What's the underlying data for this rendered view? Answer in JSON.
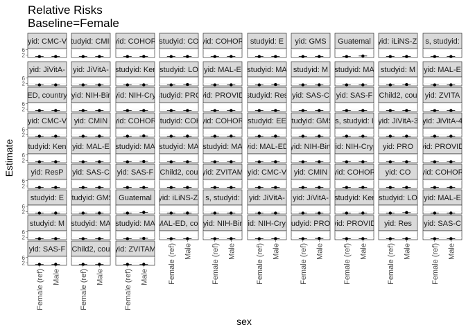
{
  "chart_data": {
    "type": "scatter",
    "title": "Relative Risks",
    "subtitle": "Baseline=Female",
    "xlabel": "sex",
    "ylabel": "Estimate",
    "categories": [
      "Female (ref)",
      "Male"
    ],
    "y_ticks": [
      "2",
      "6"
    ],
    "grid": true,
    "facet_layout": {
      "cols": 10,
      "rows": 9
    },
    "x_axis_label_columns": [
      0,
      1,
      2,
      3,
      4,
      5,
      6,
      7,
      8,
      9
    ],
    "panels": [
      {
        "strip": "yid: CMC-V",
        "values": [
          1,
          1.02
        ],
        "ci": [
          0.05,
          0.08
        ]
      },
      {
        "strip": "studyid: CMIN",
        "values": [
          1,
          1.05
        ],
        "ci": [
          0.05,
          0.1
        ]
      },
      {
        "strip": "yid: COHOR",
        "values": [
          1,
          1.1
        ],
        "ci": [
          0.05,
          0.2
        ]
      },
      {
        "strip": "studyid: CO",
        "values": [
          1,
          1.05
        ],
        "ci": [
          0.05,
          0.1
        ]
      },
      {
        "strip": "yid: COHOR",
        "values": [
          1,
          1.08
        ],
        "ci": [
          0.05,
          0.12
        ]
      },
      {
        "strip": "studyid: E",
        "values": [
          1,
          1.0
        ],
        "ci": [
          0.05,
          0.1
        ]
      },
      {
        "strip": "yid: GMS",
        "values": [
          1,
          1.05
        ],
        "ci": [
          0.05,
          0.1
        ]
      },
      {
        "strip": "Guatemal",
        "values": [
          1,
          1.4
        ],
        "ci": [
          0.05,
          0.6
        ]
      },
      {
        "strip": "yid: iLiNS-Zi",
        "values": [
          1,
          1.05
        ],
        "ci": [
          0.05,
          0.1
        ]
      },
      {
        "strip": "s, studyid:",
        "values": [
          1,
          1.02
        ],
        "ci": [
          0.05,
          0.08
        ]
      },
      {
        "strip": "yid: JiVitA-",
        "values": [
          1,
          1.02
        ],
        "ci": [
          0.05,
          0.05
        ]
      },
      {
        "strip": "yid: JiVitA-",
        "values": [
          1,
          1.02
        ],
        "ci": [
          0.05,
          0.05
        ]
      },
      {
        "strip": "studyid: Ker",
        "values": [
          1,
          1.05
        ],
        "ci": [
          0.05,
          0.1
        ]
      },
      {
        "strip": "studyid: LO",
        "values": [
          1,
          1.3
        ],
        "ci": [
          0.05,
          0.5
        ]
      },
      {
        "strip": "yid: MAL-E",
        "values": [
          1,
          1.05
        ],
        "ci": [
          0.05,
          0.1
        ]
      },
      {
        "strip": "studyid: MA",
        "values": [
          1,
          1.3
        ],
        "ci": [
          0.05,
          0.4
        ]
      },
      {
        "strip": "studyid: M",
        "values": [
          1,
          1.05
        ],
        "ci": [
          0.05,
          0.1
        ]
      },
      {
        "strip": "studyid: MA",
        "values": [
          1,
          1.05
        ],
        "ci": [
          0.05,
          0.1
        ]
      },
      {
        "strip": "studyid: M",
        "values": [
          1,
          1.3
        ],
        "ci": [
          0.05,
          0.4
        ]
      },
      {
        "strip": "yid: MAL-E",
        "values": [
          1,
          1.05
        ],
        "ci": [
          0.05,
          0.1
        ]
      },
      {
        "strip": "ED, country",
        "values": [
          1,
          1.05
        ],
        "ci": [
          0.05,
          0.1
        ]
      },
      {
        "strip": "yid: NIH-Bir",
        "values": [
          1,
          1.05
        ],
        "ci": [
          0.05,
          0.1
        ]
      },
      {
        "strip": "yid: NIH-Cry",
        "values": [
          1,
          1.05
        ],
        "ci": [
          0.05,
          0.1
        ]
      },
      {
        "strip": "studyid: PRO",
        "values": [
          1,
          1.05
        ],
        "ci": [
          0.05,
          0.1
        ]
      },
      {
        "strip": "yid: PROVID",
        "values": [
          1,
          1.05
        ],
        "ci": [
          0.05,
          0.1
        ]
      },
      {
        "strip": "studyid: Res",
        "values": [
          1,
          1.05
        ],
        "ci": [
          0.05,
          0.1
        ]
      },
      {
        "strip": "yid: SAS-C",
        "values": [
          1,
          1.05
        ],
        "ci": [
          0.05,
          0.1
        ]
      },
      {
        "strip": "yid: SAS-F",
        "values": [
          1,
          1.05
        ],
        "ci": [
          0.05,
          0.1
        ]
      },
      {
        "strip": "Child2, cou",
        "values": [
          1,
          1.05
        ],
        "ci": [
          0.05,
          0.1
        ]
      },
      {
        "strip": "yid: ZVITA",
        "values": [
          1,
          1.05
        ],
        "ci": [
          0.05,
          0.1
        ]
      },
      {
        "strip": "yid: CMC-V",
        "values": [
          1,
          1.02
        ],
        "ci": [
          0.05,
          0.08
        ]
      },
      {
        "strip": "yid: CMIN",
        "values": [
          1,
          1.05
        ],
        "ci": [
          0.05,
          0.1
        ]
      },
      {
        "strip": "yid: COHOR",
        "values": [
          1,
          1.2
        ],
        "ci": [
          0.05,
          0.2
        ]
      },
      {
        "strip": "studyid: COH",
        "values": [
          1,
          1.05
        ],
        "ci": [
          0.05,
          0.1
        ]
      },
      {
        "strip": "yid: COHOR",
        "values": [
          1,
          1.08
        ],
        "ci": [
          0.05,
          0.12
        ]
      },
      {
        "strip": "studyid: EE",
        "values": [
          1,
          1.05
        ],
        "ci": [
          0.05,
          0.1
        ]
      },
      {
        "strip": "studyid: GMS",
        "values": [
          1,
          1.05
        ],
        "ci": [
          0.05,
          0.1
        ]
      },
      {
        "strip": "s, studyid: I",
        "values": [
          1,
          1.02
        ],
        "ci": [
          0.05,
          0.08
        ]
      },
      {
        "strip": "yid: JiVitA-3",
        "values": [
          1,
          1.02
        ],
        "ci": [
          0.05,
          0.05
        ]
      },
      {
        "strip": "yid: JiVitA-4",
        "values": [
          1,
          1.02
        ],
        "ci": [
          0.05,
          0.05
        ]
      },
      {
        "strip": "tudyid: Ken",
        "values": [
          1,
          1.05
        ],
        "ci": [
          0.05,
          0.1
        ]
      },
      {
        "strip": "yid: MAL-E",
        "values": [
          1,
          1.05
        ],
        "ci": [
          0.05,
          0.1
        ]
      },
      {
        "strip": "studyid: MA",
        "values": [
          1,
          1.3
        ],
        "ci": [
          0.05,
          0.4
        ]
      },
      {
        "strip": "studyid: MA",
        "values": [
          1,
          1.05
        ],
        "ci": [
          0.05,
          0.1
        ]
      },
      {
        "strip": "studyid: MA",
        "values": [
          1,
          1.05
        ],
        "ci": [
          0.05,
          0.1
        ]
      },
      {
        "strip": "yid: MAL-ED",
        "values": [
          1,
          1.05
        ],
        "ci": [
          0.05,
          0.1
        ]
      },
      {
        "strip": "yid: NIH-Birt",
        "values": [
          1,
          1.05
        ],
        "ci": [
          0.05,
          0.1
        ]
      },
      {
        "strip": "yid: NIH-Cryp",
        "values": [
          1,
          1.05
        ],
        "ci": [
          0.05,
          0.1
        ]
      },
      {
        "strip": "yid: PRO",
        "values": [
          1,
          1.05
        ],
        "ci": [
          0.05,
          0.1
        ]
      },
      {
        "strip": "yid: PROVID",
        "values": [
          1,
          1.05
        ],
        "ci": [
          0.05,
          0.1
        ]
      },
      {
        "strip": "yid: ResP",
        "values": [
          1,
          1.05
        ],
        "ci": [
          0.05,
          0.1
        ]
      },
      {
        "strip": "yid: SAS-C",
        "values": [
          1,
          1.05
        ],
        "ci": [
          0.05,
          0.1
        ]
      },
      {
        "strip": "yid: SAS-F",
        "values": [
          1,
          1.05
        ],
        "ci": [
          0.05,
          0.1
        ]
      },
      {
        "strip": "Child2, cou",
        "values": [
          1,
          1.05
        ],
        "ci": [
          0.05,
          0.1
        ]
      },
      {
        "strip": "yid: ZVITAM",
        "values": [
          1,
          1.05
        ],
        "ci": [
          0.05,
          0.1
        ]
      },
      {
        "strip": "yid: CMC-V",
        "values": [
          1,
          1.02
        ],
        "ci": [
          0.05,
          0.08
        ]
      },
      {
        "strip": "yid: CMIN",
        "values": [
          1,
          1.05
        ],
        "ci": [
          0.05,
          0.1
        ]
      },
      {
        "strip": "yid: COHOR",
        "values": [
          1,
          1.1
        ],
        "ci": [
          0.05,
          0.2
        ]
      },
      {
        "strip": "yid: CO",
        "values": [
          1,
          1.05
        ],
        "ci": [
          0.05,
          0.1
        ]
      },
      {
        "strip": "yid: COHOR",
        "values": [
          1,
          1.08
        ],
        "ci": [
          0.05,
          0.12
        ]
      },
      {
        "strip": "studyid: E",
        "values": [
          1,
          1.05
        ],
        "ci": [
          0.05,
          0.1
        ]
      },
      {
        "strip": "studyid: GMS",
        "values": [
          1,
          1.05
        ],
        "ci": [
          0.05,
          0.1
        ]
      },
      {
        "strip": "Guatemal",
        "values": [
          1,
          1.6
        ],
        "ci": [
          0.05,
          0.9
        ]
      },
      {
        "strip": "yid: iLiNS-Zi",
        "values": [
          1,
          1.05
        ],
        "ci": [
          0.05,
          0.1
        ]
      },
      {
        "strip": "s, studyid:",
        "values": [
          1,
          1.02
        ],
        "ci": [
          0.05,
          0.08
        ]
      },
      {
        "strip": "yid: JiVitA-",
        "values": [
          1,
          1.02
        ],
        "ci": [
          0.05,
          0.05
        ]
      },
      {
        "strip": "yid: JiVitA-",
        "values": [
          1,
          1.02
        ],
        "ci": [
          0.05,
          0.05
        ]
      },
      {
        "strip": "studyid: Ker",
        "values": [
          1,
          1.05
        ],
        "ci": [
          0.05,
          0.1
        ]
      },
      {
        "strip": "studyid: LO",
        "values": [
          1,
          1.4
        ],
        "ci": [
          0.05,
          0.6
        ]
      },
      {
        "strip": "yid: MAL-E",
        "values": [
          1,
          1.05
        ],
        "ci": [
          0.05,
          0.1
        ]
      },
      {
        "strip": "studyid: M",
        "values": [
          1,
          1.05
        ],
        "ci": [
          0.05,
          0.1
        ]
      },
      {
        "strip": "studyid: MA",
        "values": [
          1,
          1.05
        ],
        "ci": [
          0.05,
          0.1
        ]
      },
      {
        "strip": "studyid: MA",
        "values": [
          1,
          1.3
        ],
        "ci": [
          0.05,
          0.3
        ]
      },
      {
        "strip": "yid: MAL-ED, country",
        "values": [
          1,
          1.05
        ],
        "ci": [
          0.05,
          0.1
        ]
      },
      {
        "strip": "yid: NIH-Bir",
        "values": [
          1,
          1.05
        ],
        "ci": [
          0.05,
          0.1
        ]
      },
      {
        "strip": "yid: NIH-Cryp",
        "values": [
          1,
          1.1
        ],
        "ci": [
          0.05,
          0.15
        ]
      },
      {
        "strip": "udyid: PRO",
        "values": [
          1,
          1.2
        ],
        "ci": [
          0.05,
          0.2
        ]
      },
      {
        "strip": "yid: PROVID",
        "values": [
          1,
          1.05
        ],
        "ci": [
          0.05,
          0.1
        ]
      },
      {
        "strip": "yid: Res",
        "values": [
          1,
          1.05
        ],
        "ci": [
          0.05,
          0.1
        ]
      },
      {
        "strip": "yid: SAS-C",
        "values": [
          1,
          1.05
        ],
        "ci": [
          0.05,
          0.1
        ]
      },
      {
        "strip": "yid: SAS-F",
        "values": [
          1,
          1.05
        ],
        "ci": [
          0.05,
          0.1
        ]
      },
      {
        "strip": "Child2, cou",
        "values": [
          1,
          1.05
        ],
        "ci": [
          0.05,
          0.1
        ]
      },
      {
        "strip": "yid: ZVITAM",
        "values": [
          1,
          1.05
        ],
        "ci": [
          0.05,
          0.1
        ]
      }
    ]
  }
}
